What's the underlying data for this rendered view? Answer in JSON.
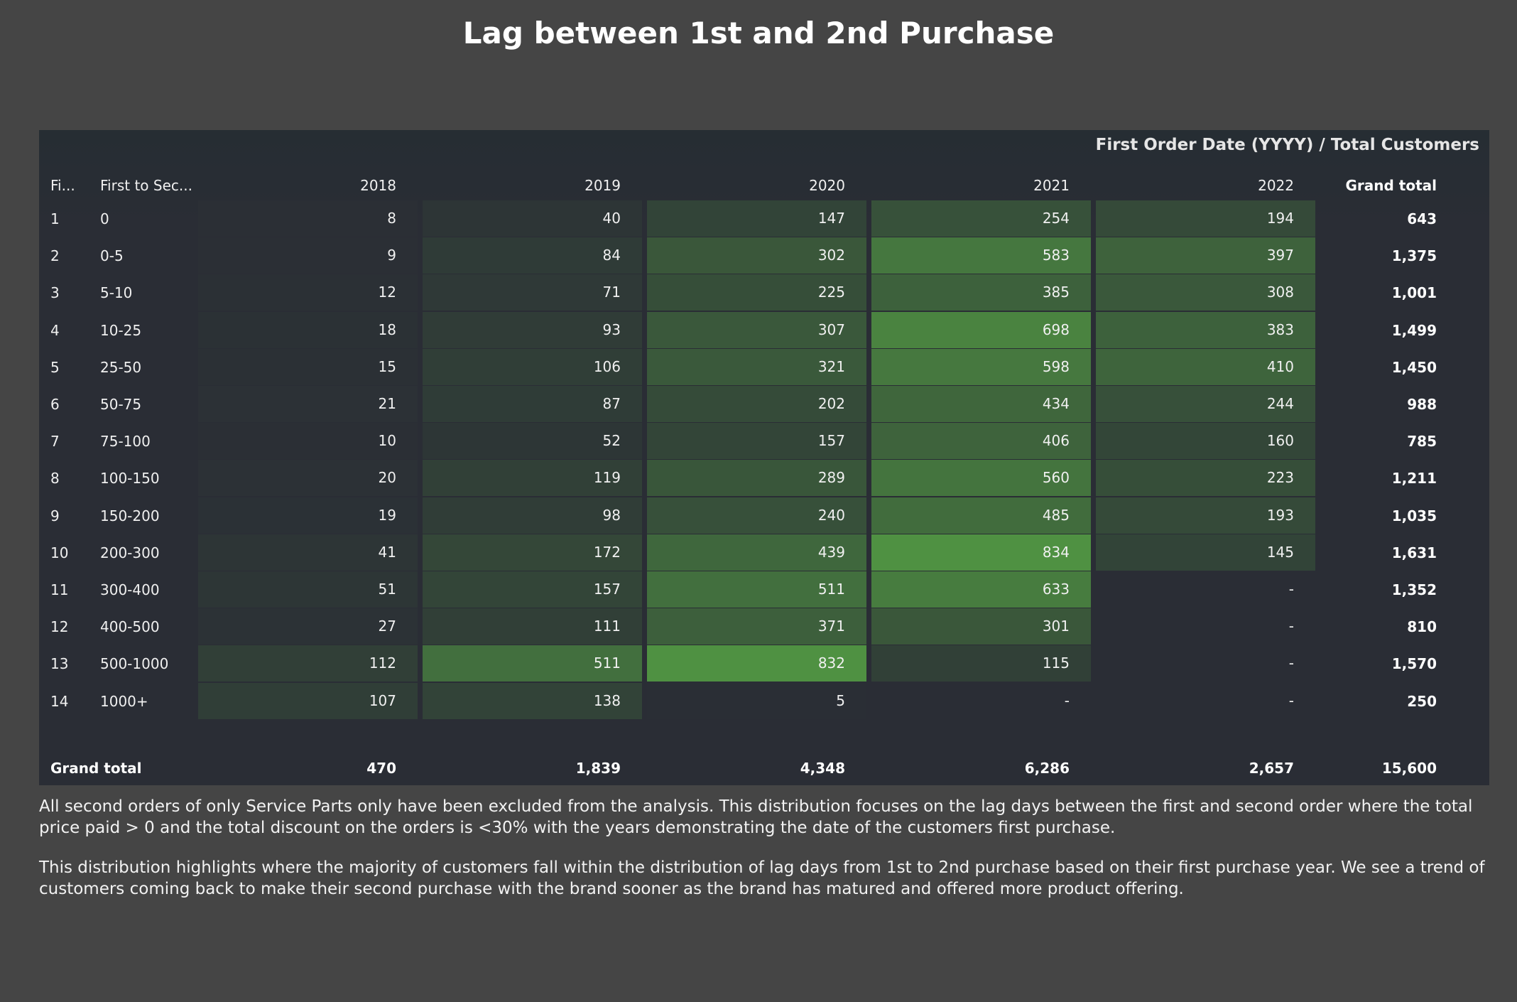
{
  "title": "Lag between 1st and 2nd Purchase",
  "chart_data": {
    "type": "table",
    "caption": "First Order Date (YYYY) / Total Customers",
    "col_header_rowno": "Fi...",
    "col_header_bucket": "First to Sec...",
    "columns": [
      "2018",
      "2019",
      "2020",
      "2021",
      "2022"
    ],
    "grand_total_header": "Grand total",
    "rows": [
      {
        "no": "1",
        "bucket": "0",
        "values": [
          8,
          40,
          147,
          254,
          194
        ],
        "display": [
          "8",
          "40",
          "147",
          "254",
          "194"
        ],
        "total": "643"
      },
      {
        "no": "2",
        "bucket": "0-5",
        "values": [
          9,
          84,
          302,
          583,
          397
        ],
        "display": [
          "9",
          "84",
          "302",
          "583",
          "397"
        ],
        "total": "1,375"
      },
      {
        "no": "3",
        "bucket": "5-10",
        "values": [
          12,
          71,
          225,
          385,
          308
        ],
        "display": [
          "12",
          "71",
          "225",
          "385",
          "308"
        ],
        "total": "1,001"
      },
      {
        "no": "4",
        "bucket": "10-25",
        "values": [
          18,
          93,
          307,
          698,
          383
        ],
        "display": [
          "18",
          "93",
          "307",
          "698",
          "383"
        ],
        "total": "1,499"
      },
      {
        "no": "5",
        "bucket": "25-50",
        "values": [
          15,
          106,
          321,
          598,
          410
        ],
        "display": [
          "15",
          "106",
          "321",
          "598",
          "410"
        ],
        "total": "1,450"
      },
      {
        "no": "6",
        "bucket": "50-75",
        "values": [
          21,
          87,
          202,
          434,
          244
        ],
        "display": [
          "21",
          "87",
          "202",
          "434",
          "244"
        ],
        "total": "988"
      },
      {
        "no": "7",
        "bucket": "75-100",
        "values": [
          10,
          52,
          157,
          406,
          160
        ],
        "display": [
          "10",
          "52",
          "157",
          "406",
          "160"
        ],
        "total": "785"
      },
      {
        "no": "8",
        "bucket": "100-150",
        "values": [
          20,
          119,
          289,
          560,
          223
        ],
        "display": [
          "20",
          "119",
          "289",
          "560",
          "223"
        ],
        "total": "1,211"
      },
      {
        "no": "9",
        "bucket": "150-200",
        "values": [
          19,
          98,
          240,
          485,
          193
        ],
        "display": [
          "19",
          "98",
          "240",
          "485",
          "193"
        ],
        "total": "1,035"
      },
      {
        "no": "10",
        "bucket": "200-300",
        "values": [
          41,
          172,
          439,
          834,
          145
        ],
        "display": [
          "41",
          "172",
          "439",
          "834",
          "145"
        ],
        "total": "1,631"
      },
      {
        "no": "11",
        "bucket": "300-400",
        "values": [
          51,
          157,
          511,
          633,
          null
        ],
        "display": [
          "51",
          "157",
          "511",
          "633",
          "-"
        ],
        "total": "1,352"
      },
      {
        "no": "12",
        "bucket": "400-500",
        "values": [
          27,
          111,
          371,
          301,
          null
        ],
        "display": [
          "27",
          "111",
          "371",
          "301",
          "-"
        ],
        "total": "810"
      },
      {
        "no": "13",
        "bucket": "500-1000",
        "values": [
          112,
          511,
          832,
          115,
          null
        ],
        "display": [
          "112",
          "511",
          "832",
          "115",
          "-"
        ],
        "total": "1,570"
      },
      {
        "no": "14",
        "bucket": "1000+",
        "values": [
          107,
          138,
          5,
          null,
          null
        ],
        "display": [
          "107",
          "138",
          "5",
          "-",
          "-"
        ],
        "total": "250"
      }
    ],
    "grand_total_label": "Grand total",
    "grand_total_row": [
      "470",
      "1,839",
      "4,348",
      "6,286",
      "2,657"
    ],
    "grand_total_all": "15,600",
    "color_scale": {
      "low": "#2a2d35",
      "high": "#4f9142",
      "max_value": 834
    }
  },
  "notes": [
    "All second orders of only Service Parts only have been excluded from the analysis. This distribution focuses on the lag days between the first and second order where the total price paid > 0 and the total discount on the orders is <30% with the years demonstrating the date of the customers first purchase.",
    "This distribution highlights where the majority of customers fall within the distribution of lag days from 1st to 2nd purchase based on their first purchase year. We see a trend of customers coming back to make their second purchase with the brand sooner as the brand has matured and offered more product offering."
  ]
}
